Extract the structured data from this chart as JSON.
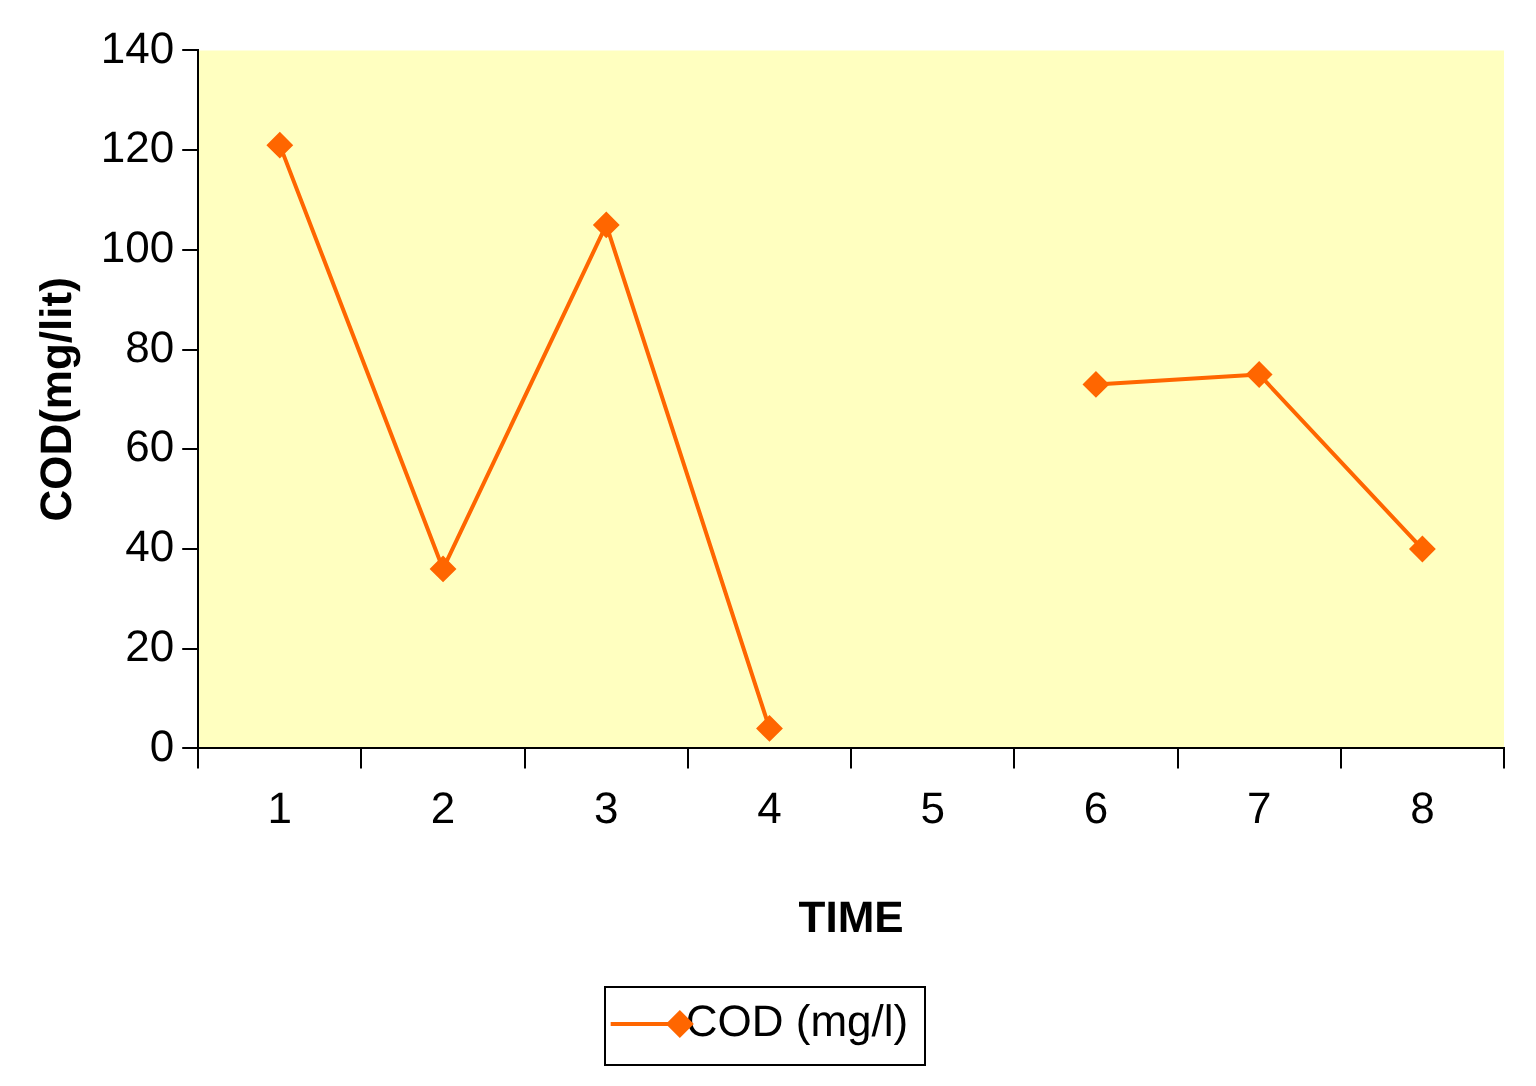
{
  "chart_data": {
    "type": "line",
    "xlabel": "TIME",
    "ylabel": "COD(mg/lit)",
    "categories": [
      "1",
      "2",
      "3",
      "4",
      "5",
      "6",
      "7",
      "8"
    ],
    "series": [
      {
        "name": "COD (mg/l)",
        "color": "#ff6600",
        "values": [
          121,
          36,
          105,
          4,
          null,
          73,
          75,
          40
        ]
      }
    ],
    "ylim": [
      0,
      140
    ],
    "yticks": [
      0,
      20,
      40,
      60,
      80,
      100,
      120,
      140
    ],
    "grid": false,
    "legend": "bottom",
    "marker": "diamond",
    "line_style": "solid"
  }
}
